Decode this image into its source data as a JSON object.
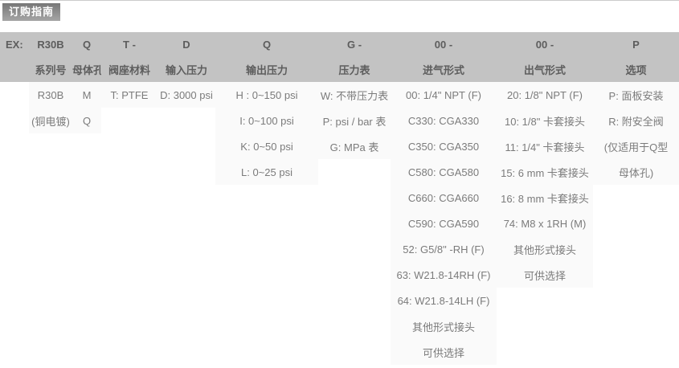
{
  "page": {
    "title_badge": "订购指南"
  },
  "colors": {
    "badge_gradient_top": "#777777",
    "badge_gradient_bottom": "#a5a5a5",
    "badge_text": "#ffffff",
    "header_band": "#c3c3c3",
    "header_text": "#5d5d5d",
    "body_text": "#7b7b7b",
    "filled_cell_background": "#fafafa",
    "page_background": "#ffffff"
  },
  "table": {
    "example_label": "EX:",
    "columns": [
      {
        "code": "R30B",
        "label": "系列号",
        "values": [
          "R30B",
          "(铜电镀)"
        ]
      },
      {
        "code": "Q",
        "label": "母体孔",
        "values": [
          "M",
          "Q"
        ]
      },
      {
        "code": "T -",
        "label": "阀座材料",
        "values": [
          "T: PTFE"
        ]
      },
      {
        "code": "D",
        "label": "输入压力",
        "values": [
          "D: 3000 psi"
        ]
      },
      {
        "code": "Q",
        "label": "输出压力",
        "values": [
          "H : 0~150 psi",
          "I: 0~100 psi",
          "K: 0~50 psi",
          "L: 0~25 psi"
        ]
      },
      {
        "code": "G -",
        "label": "压力表",
        "values": [
          "W: 不带压力表",
          "P: psi / bar 表",
          "G: MPa 表"
        ]
      },
      {
        "code": "00 -",
        "label": "进气形式",
        "values": [
          "00: 1/4\" NPT (F)",
          "C330: CGA330",
          "C350: CGA350",
          "C580: CGA580",
          "C660: CGA660",
          "C590: CGA590",
          "52: G5/8\" -RH (F)",
          "63: W21.8-14RH (F)",
          "64: W21.8-14LH (F)",
          "其他形式接头",
          "可供选择"
        ]
      },
      {
        "code": "00 -",
        "label": "出气形式",
        "values": [
          "20: 1/8\" NPT (F)",
          "10: 1/8\" 卡套接头",
          "11: 1/4\" 卡套接头",
          "15: 6 mm 卡套接头",
          "16: 8 mm 卡套接头",
          "74: M8 x 1RH (M)",
          "其他形式接头",
          "可供选择"
        ]
      },
      {
        "code": "P",
        "label": "选项",
        "values": [
          "P: 面板安装",
          "R: 附安全阀",
          "(仅适用于Q型",
          "母体孔)"
        ]
      }
    ]
  }
}
